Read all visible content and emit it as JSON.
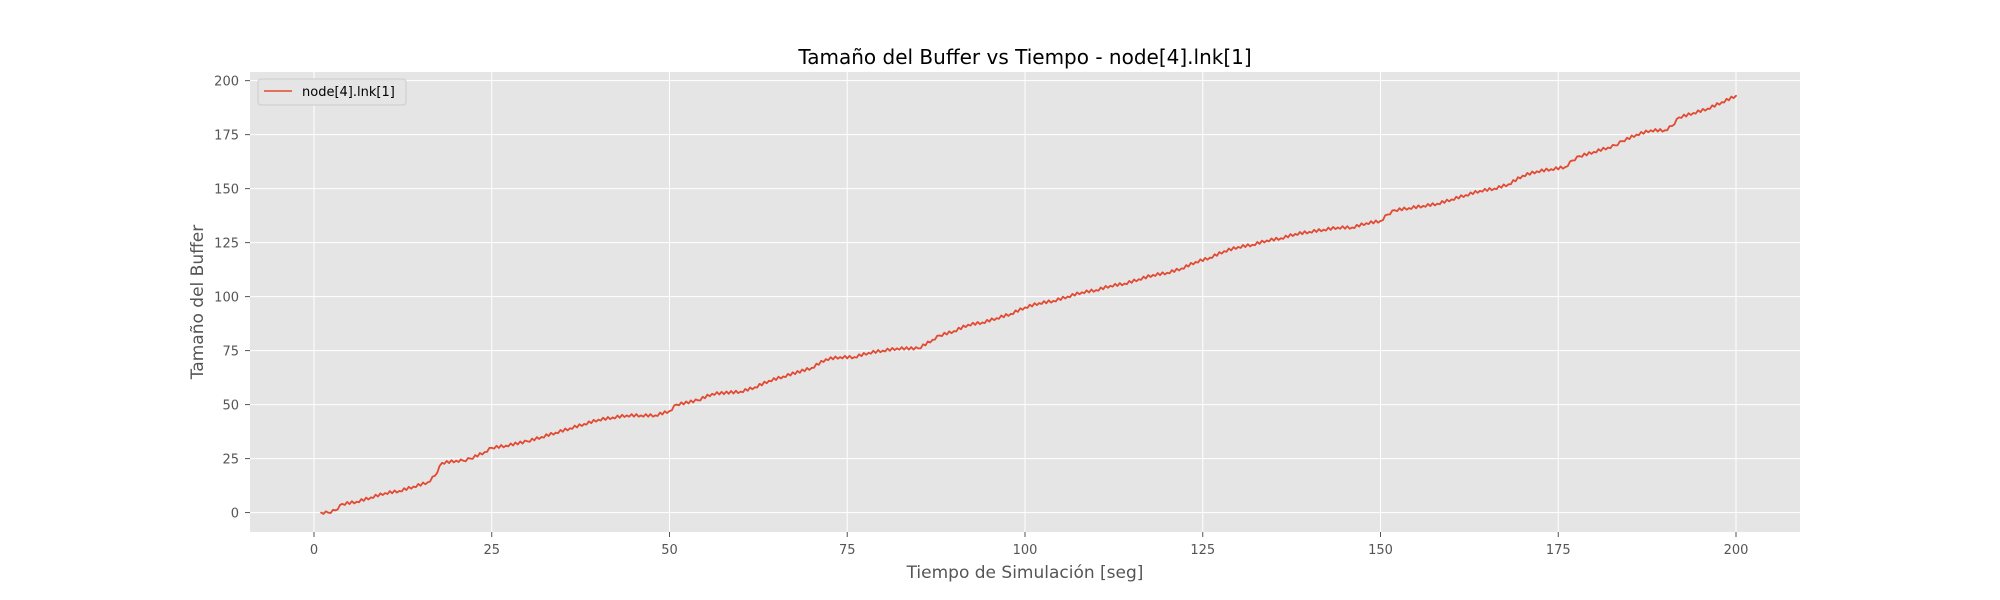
{
  "colors": {
    "plot_background": "#e5e5e5",
    "grid": "#ffffff",
    "series": "#e24a33",
    "text": "#555555",
    "title": "#000000"
  },
  "chart_data": {
    "type": "line",
    "title": "Tamaño del Buffer vs Tiempo - node[4].lnk[1]",
    "xlabel": "Tiempo de Simulación [seg]",
    "ylabel": "Tamaño del Buffer",
    "xlim": [
      -9,
      209
    ],
    "ylim": [
      -9,
      204
    ],
    "xticks": [
      0,
      25,
      50,
      75,
      100,
      125,
      150,
      175,
      200
    ],
    "yticks": [
      0,
      25,
      50,
      75,
      100,
      125,
      150,
      175,
      200
    ],
    "grid": true,
    "legend_position": "top-left",
    "series": [
      {
        "name": "node[4].lnk[1]",
        "x": [
          1,
          2,
          3,
          4,
          6,
          8,
          10,
          12,
          14,
          16,
          17,
          18,
          20,
          21,
          22,
          24,
          25,
          27,
          30,
          32,
          34,
          36,
          38,
          40,
          42,
          44,
          46,
          48,
          50,
          51,
          54,
          56,
          60,
          62,
          64,
          66,
          70,
          72,
          74,
          76,
          78,
          80,
          82,
          85,
          87,
          88,
          90,
          92,
          94,
          96,
          98,
          100,
          102,
          104,
          106,
          108,
          110,
          112,
          114,
          116,
          118,
          120,
          122,
          124,
          126,
          128,
          130,
          132,
          134,
          136,
          138,
          140,
          142,
          144,
          146,
          148,
          150,
          151,
          152,
          154,
          156,
          158,
          160,
          162,
          164,
          166,
          168,
          170,
          172,
          174,
          176,
          177,
          178,
          180,
          182,
          183,
          184,
          186,
          188,
          190,
          191,
          192,
          194,
          196,
          198,
          200
        ],
        "y": [
          0,
          0,
          1,
          4,
          5,
          7,
          9,
          10,
          12,
          14,
          17,
          23,
          24,
          24,
          25,
          28,
          30,
          31,
          33,
          35,
          37,
          39,
          41,
          43,
          44,
          45,
          45,
          45,
          47,
          50,
          52,
          55,
          56,
          58,
          61,
          63,
          67,
          71,
          72,
          72,
          74,
          75,
          76,
          76,
          80,
          82,
          84,
          87,
          88,
          90,
          92,
          95,
          97,
          98,
          100,
          102,
          103,
          105,
          106,
          108,
          110,
          111,
          113,
          116,
          118,
          121,
          123,
          124,
          126,
          127,
          129,
          130,
          131,
          132,
          132,
          134,
          135,
          138,
          140,
          141,
          142,
          143,
          145,
          147,
          149,
          150,
          152,
          156,
          158,
          159,
          160,
          163,
          165,
          167,
          169,
          170,
          172,
          175,
          177,
          177,
          179,
          183,
          185,
          187,
          190,
          193
        ]
      }
    ]
  }
}
